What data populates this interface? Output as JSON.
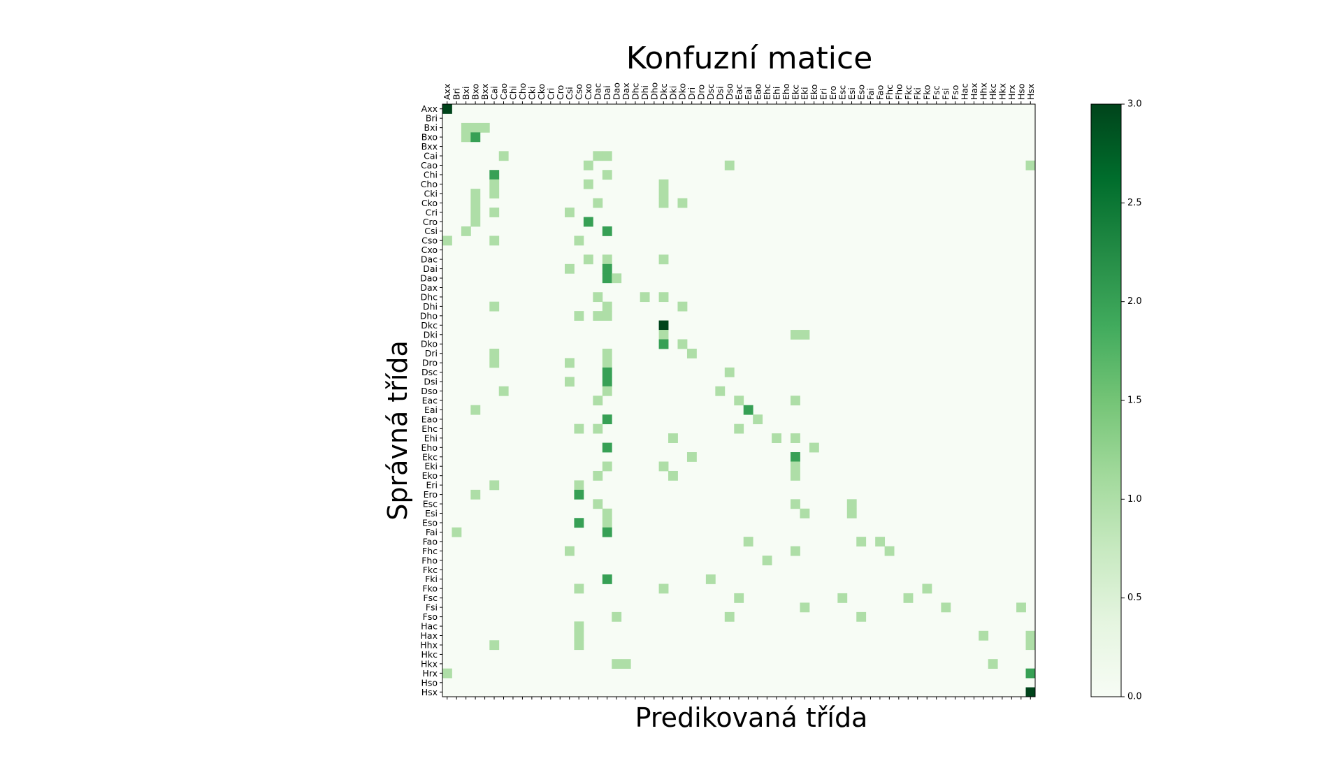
{
  "chart_data": {
    "type": "heatmap",
    "title": "Konfuzní matice",
    "xlabel": "Predikovaná třída",
    "ylabel": "Správná třída",
    "labels": [
      "Axx",
      "Bri",
      "Bxi",
      "Bxo",
      "Bxx",
      "Cai",
      "Cao",
      "Chi",
      "Cho",
      "Cki",
      "Cko",
      "Cri",
      "Cro",
      "Csi",
      "Cso",
      "Cxo",
      "Dac",
      "Dai",
      "Dao",
      "Dax",
      "Dhc",
      "Dhi",
      "Dho",
      "Dkc",
      "Dki",
      "Dko",
      "Dri",
      "Dro",
      "Dsc",
      "Dsi",
      "Dso",
      "Eac",
      "Eai",
      "Eao",
      "Ehc",
      "Ehi",
      "Eho",
      "Ekc",
      "Eki",
      "Eko",
      "Eri",
      "Ero",
      "Esc",
      "Esi",
      "Eso",
      "Fai",
      "Fao",
      "Fhc",
      "Fho",
      "Fkc",
      "Fki",
      "Fko",
      "Fsc",
      "Fsi",
      "Fso",
      "Hac",
      "Hax",
      "Hhx",
      "Hkc",
      "Hkx",
      "Hrx",
      "Hso",
      "Hsx"
    ],
    "cells": [
      [
        0,
        0,
        3
      ],
      [
        2,
        2,
        1
      ],
      [
        2,
        3,
        1
      ],
      [
        2,
        4,
        1
      ],
      [
        3,
        2,
        1
      ],
      [
        3,
        3,
        2
      ],
      [
        5,
        6,
        1
      ],
      [
        5,
        16,
        1
      ],
      [
        5,
        17,
        1
      ],
      [
        6,
        15,
        1
      ],
      [
        6,
        30,
        1
      ],
      [
        6,
        62,
        1
      ],
      [
        7,
        5,
        2
      ],
      [
        7,
        17,
        1
      ],
      [
        8,
        5,
        1
      ],
      [
        8,
        15,
        1
      ],
      [
        8,
        23,
        1
      ],
      [
        9,
        3,
        1
      ],
      [
        9,
        5,
        1
      ],
      [
        9,
        23,
        1
      ],
      [
        10,
        3,
        1
      ],
      [
        10,
        16,
        1
      ],
      [
        10,
        23,
        1
      ],
      [
        10,
        25,
        1
      ],
      [
        11,
        3,
        1
      ],
      [
        11,
        5,
        1
      ],
      [
        11,
        13,
        1
      ],
      [
        12,
        3,
        1
      ],
      [
        12,
        15,
        2
      ],
      [
        13,
        2,
        1
      ],
      [
        13,
        17,
        2
      ],
      [
        14,
        0,
        1
      ],
      [
        14,
        5,
        1
      ],
      [
        14,
        14,
        1
      ],
      [
        16,
        15,
        1
      ],
      [
        16,
        17,
        1
      ],
      [
        16,
        23,
        1
      ],
      [
        17,
        13,
        1
      ],
      [
        17,
        17,
        2
      ],
      [
        18,
        17,
        2
      ],
      [
        18,
        18,
        1
      ],
      [
        20,
        16,
        1
      ],
      [
        20,
        21,
        1
      ],
      [
        20,
        23,
        1
      ],
      [
        21,
        5,
        1
      ],
      [
        21,
        17,
        1
      ],
      [
        21,
        25,
        1
      ],
      [
        22,
        14,
        1
      ],
      [
        22,
        16,
        1
      ],
      [
        22,
        17,
        1
      ],
      [
        23,
        23,
        3
      ],
      [
        24,
        23,
        1
      ],
      [
        24,
        37,
        1
      ],
      [
        24,
        38,
        1
      ],
      [
        25,
        23,
        2
      ],
      [
        25,
        25,
        1
      ],
      [
        26,
        5,
        1
      ],
      [
        26,
        17,
        1
      ],
      [
        26,
        26,
        1
      ],
      [
        27,
        5,
        1
      ],
      [
        27,
        13,
        1
      ],
      [
        27,
        17,
        1
      ],
      [
        28,
        17,
        2
      ],
      [
        28,
        30,
        1
      ],
      [
        29,
        13,
        1
      ],
      [
        29,
        17,
        2
      ],
      [
        30,
        6,
        1
      ],
      [
        30,
        17,
        1
      ],
      [
        30,
        29,
        1
      ],
      [
        31,
        16,
        1
      ],
      [
        31,
        31,
        1
      ],
      [
        31,
        37,
        1
      ],
      [
        32,
        3,
        1
      ],
      [
        32,
        32,
        2
      ],
      [
        33,
        17,
        2
      ],
      [
        33,
        33,
        1
      ],
      [
        34,
        14,
        1
      ],
      [
        34,
        16,
        1
      ],
      [
        34,
        31,
        1
      ],
      [
        35,
        24,
        1
      ],
      [
        35,
        35,
        1
      ],
      [
        35,
        37,
        1
      ],
      [
        36,
        17,
        2
      ],
      [
        36,
        39,
        1
      ],
      [
        37,
        26,
        1
      ],
      [
        37,
        37,
        2
      ],
      [
        38,
        17,
        1
      ],
      [
        38,
        23,
        1
      ],
      [
        38,
        37,
        1
      ],
      [
        39,
        16,
        1
      ],
      [
        39,
        24,
        1
      ],
      [
        39,
        37,
        1
      ],
      [
        40,
        5,
        1
      ],
      [
        40,
        14,
        1
      ],
      [
        41,
        3,
        1
      ],
      [
        41,
        14,
        2
      ],
      [
        42,
        16,
        1
      ],
      [
        42,
        37,
        1
      ],
      [
        42,
        43,
        1
      ],
      [
        43,
        17,
        1
      ],
      [
        43,
        38,
        1
      ],
      [
        43,
        43,
        1
      ],
      [
        44,
        14,
        2
      ],
      [
        44,
        17,
        1
      ],
      [
        45,
        1,
        1
      ],
      [
        45,
        17,
        2
      ],
      [
        46,
        32,
        1
      ],
      [
        46,
        44,
        1
      ],
      [
        46,
        46,
        1
      ],
      [
        47,
        13,
        1
      ],
      [
        47,
        37,
        1
      ],
      [
        47,
        47,
        1
      ],
      [
        48,
        34,
        1
      ],
      [
        50,
        17,
        2
      ],
      [
        50,
        28,
        1
      ],
      [
        51,
        14,
        1
      ],
      [
        51,
        23,
        1
      ],
      [
        51,
        51,
        1
      ],
      [
        52,
        31,
        1
      ],
      [
        52,
        42,
        1
      ],
      [
        52,
        49,
        1
      ],
      [
        53,
        38,
        1
      ],
      [
        53,
        53,
        1
      ],
      [
        53,
        61,
        1
      ],
      [
        54,
        18,
        1
      ],
      [
        54,
        30,
        1
      ],
      [
        54,
        44,
        1
      ],
      [
        55,
        14,
        1
      ],
      [
        56,
        14,
        1
      ],
      [
        56,
        57,
        1
      ],
      [
        56,
        62,
        1
      ],
      [
        57,
        5,
        1
      ],
      [
        57,
        14,
        1
      ],
      [
        57,
        62,
        1
      ],
      [
        59,
        18,
        1
      ],
      [
        59,
        19,
        1
      ],
      [
        59,
        58,
        1
      ],
      [
        60,
        0,
        1
      ],
      [
        60,
        62,
        2
      ],
      [
        62,
        62,
        3
      ]
    ],
    "vmin": 0,
    "vmax": 3,
    "colorbar_ticks": [
      "0.0",
      "0.5",
      "1.0",
      "1.5",
      "2.0",
      "2.5",
      "3.0"
    ],
    "colormap": [
      "#f7fcf5",
      "#e5f5e0",
      "#c7e9c0",
      "#a1d99b",
      "#74c476",
      "#41ab5d",
      "#238b45",
      "#006d2c",
      "#00441b"
    ]
  }
}
